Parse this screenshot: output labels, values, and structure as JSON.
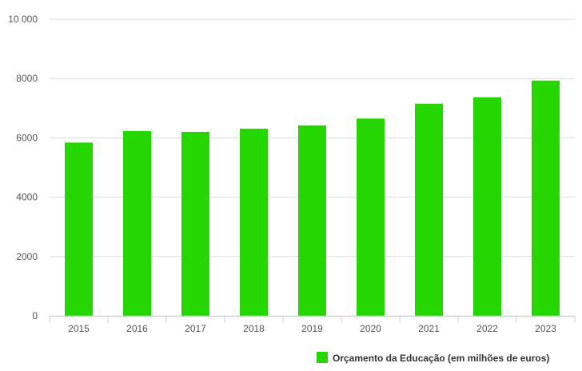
{
  "chart_data": {
    "type": "bar",
    "categories": [
      "2015",
      "2016",
      "2017",
      "2018",
      "2019",
      "2020",
      "2021",
      "2022",
      "2023"
    ],
    "series": [
      {
        "name": "Orçamento da Educação (em milhões de euros)",
        "values": [
          5840,
          6230,
          6200,
          6310,
          6420,
          6650,
          7150,
          7370,
          7930
        ],
        "color": "#26d600"
      }
    ],
    "yticks": [
      0,
      2000,
      4000,
      6000,
      8000,
      10000
    ],
    "ytick_labels": [
      "0",
      "2000",
      "4000",
      "6000",
      "8000",
      "10 000"
    ],
    "ylim": [
      0,
      10000
    ],
    "grid": true,
    "legend_position": "bottom-right",
    "title": "",
    "xlabel": "",
    "ylabel": ""
  }
}
